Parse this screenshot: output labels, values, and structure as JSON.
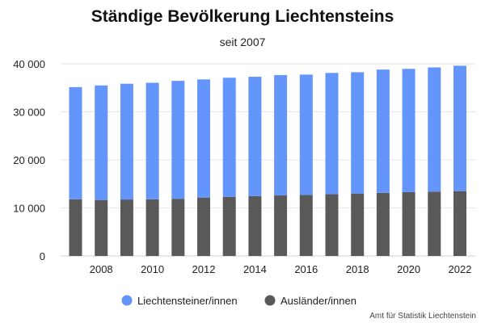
{
  "chart_data": {
    "type": "bar",
    "stacked": true,
    "title": "Ständige Bevölkerung Liechtensteins",
    "subtitle": "seit 2007",
    "x": [
      2007,
      2008,
      2009,
      2010,
      2011,
      2012,
      2013,
      2014,
      2015,
      2016,
      2017,
      2018,
      2019,
      2020,
      2021,
      2022
    ],
    "x_tick_labels": [
      "2008",
      "2010",
      "2012",
      "2014",
      "2016",
      "2018",
      "2020",
      "2022"
    ],
    "y_tick_labels": [
      "0",
      "10 000",
      "20 000",
      "30 000",
      "40 000"
    ],
    "ylim": [
      0,
      40000
    ],
    "grid": true,
    "legend_position": "bottom-center",
    "series": [
      {
        "name": "Ausländer/innen",
        "color": "#595959",
        "values": [
          11800,
          11650,
          11750,
          11800,
          11900,
          12150,
          12300,
          12450,
          12600,
          12700,
          12850,
          13000,
          13150,
          13300,
          13400,
          13500
        ]
      },
      {
        "name": "Liechtensteiner/innen",
        "color": "#6495fa",
        "values": [
          23350,
          23850,
          24100,
          24250,
          24550,
          24600,
          24800,
          24850,
          25050,
          25050,
          25250,
          25250,
          25650,
          25650,
          25850,
          26100
        ]
      }
    ],
    "legend": [
      "Liechtensteiner/innen",
      "Ausländer/innen"
    ],
    "source": "Amt für Statistik Liechtenstein"
  }
}
